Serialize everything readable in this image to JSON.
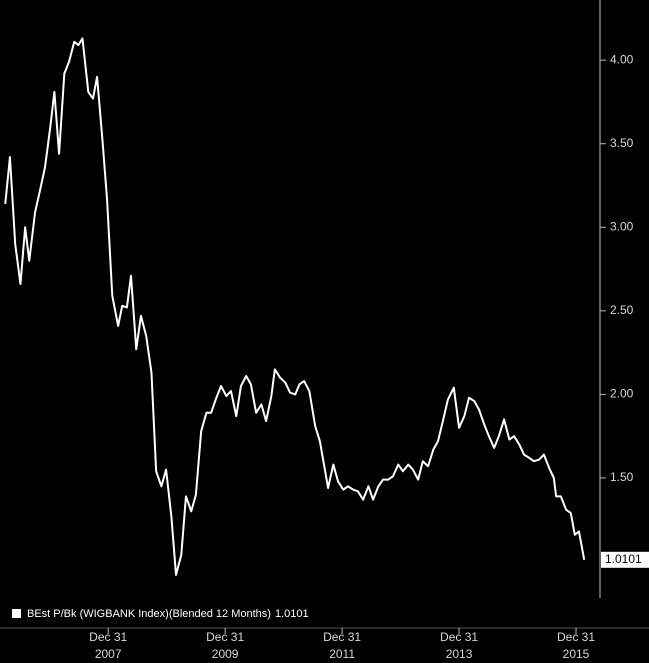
{
  "chart_data": {
    "type": "line",
    "series": [
      {
        "name": "BEst P/Bk (WIGBANK Index)(Blended 12 Months)",
        "color": "#ffffff",
        "x": [
          2006.24,
          2006.32,
          2006.41,
          2006.5,
          2006.58,
          2006.65,
          2006.75,
          2006.84,
          2006.92,
          2007.01,
          2007.08,
          2007.16,
          2007.25,
          2007.33,
          2007.42,
          2007.49,
          2007.56,
          2007.66,
          2007.74,
          2007.81,
          2007.9,
          2007.98,
          2008.07,
          2008.17,
          2008.24,
          2008.32,
          2008.39,
          2008.48,
          2008.56,
          2008.65,
          2008.74,
          2008.82,
          2008.91,
          2008.99,
          2009.08,
          2009.16,
          2009.25,
          2009.33,
          2009.42,
          2009.5,
          2009.59,
          2009.68,
          2009.76,
          2009.85,
          2009.93,
          2010.02,
          2010.1,
          2010.19,
          2010.27,
          2010.36,
          2010.44,
          2010.53,
          2010.62,
          2010.7,
          2010.79,
          2010.85,
          2010.94,
          2011.03,
          2011.11,
          2011.2,
          2011.27,
          2011.35,
          2011.44,
          2011.54,
          2011.62,
          2011.69,
          2011.76,
          2011.85,
          2011.93,
          2012.02,
          2012.1,
          2012.19,
          2012.27,
          2012.36,
          2012.45,
          2012.53,
          2012.62,
          2012.7,
          2012.79,
          2012.87,
          2012.96,
          2013.04,
          2013.13,
          2013.21,
          2013.3,
          2013.38,
          2013.47,
          2013.56,
          2013.64,
          2013.73,
          2013.81,
          2013.91,
          2014.0,
          2014.09,
          2014.17,
          2014.26,
          2014.34,
          2014.43,
          2014.51,
          2014.6,
          2014.68,
          2014.77,
          2014.86,
          2014.94,
          2015.03,
          2015.11,
          2015.2,
          2015.28,
          2015.37,
          2015.45,
          2015.54,
          2015.62,
          2015.66,
          2015.74,
          2015.83,
          2015.91,
          2015.98,
          2016.05,
          2016.14
        ],
        "values": [
          3.14,
          3.42,
          2.9,
          2.66,
          3.0,
          2.8,
          3.09,
          3.23,
          3.36,
          3.6,
          3.81,
          3.44,
          3.92,
          3.99,
          4.11,
          4.09,
          4.13,
          3.81,
          3.77,
          3.9,
          3.53,
          3.17,
          2.59,
          2.41,
          2.53,
          2.52,
          2.71,
          2.27,
          2.47,
          2.35,
          2.13,
          1.54,
          1.45,
          1.55,
          1.27,
          0.92,
          1.04,
          1.39,
          1.3,
          1.4,
          1.78,
          1.89,
          1.89,
          1.98,
          2.05,
          1.99,
          2.02,
          1.87,
          2.05,
          2.11,
          2.06,
          1.89,
          1.94,
          1.84,
          1.99,
          2.15,
          2.1,
          2.07,
          2.01,
          2.0,
          2.06,
          2.08,
          2.02,
          1.81,
          1.72,
          1.58,
          1.44,
          1.58,
          1.48,
          1.43,
          1.45,
          1.43,
          1.42,
          1.37,
          1.45,
          1.37,
          1.45,
          1.49,
          1.49,
          1.51,
          1.58,
          1.54,
          1.58,
          1.55,
          1.49,
          1.6,
          1.57,
          1.67,
          1.72,
          1.85,
          1.97,
          2.04,
          1.8,
          1.87,
          1.98,
          1.96,
          1.91,
          1.82,
          1.75,
          1.68,
          1.75,
          1.85,
          1.73,
          1.75,
          1.7,
          1.64,
          1.62,
          1.6,
          1.61,
          1.64,
          1.56,
          1.5,
          1.39,
          1.39,
          1.31,
          1.29,
          1.16,
          1.18,
          1.0101
        ]
      }
    ],
    "xlim": [
      2006.15,
      2016.41
    ],
    "xticks": [
      {
        "value": 2008,
        "label": "Dec 31",
        "year": "2007"
      },
      {
        "value": 2010,
        "label": "Dec 31",
        "year": "2009"
      },
      {
        "value": 2012,
        "label": "Dec 31",
        "year": "2011"
      },
      {
        "value": 2014,
        "label": "Dec 31",
        "year": "2013"
      },
      {
        "value": 2016,
        "label": "Dec 31",
        "year": "2015"
      }
    ],
    "ylim": [
      0.62,
      4.36
    ],
    "yticks": [
      {
        "value": 1.5,
        "label": "1.50"
      },
      {
        "value": 2,
        "label": "2.00"
      },
      {
        "value": 2.5,
        "label": "2.50"
      },
      {
        "value": 3,
        "label": "3.00"
      },
      {
        "value": 3.5,
        "label": "3.50"
      },
      {
        "value": 4,
        "label": "4.00"
      }
    ],
    "grid": false
  }
}
